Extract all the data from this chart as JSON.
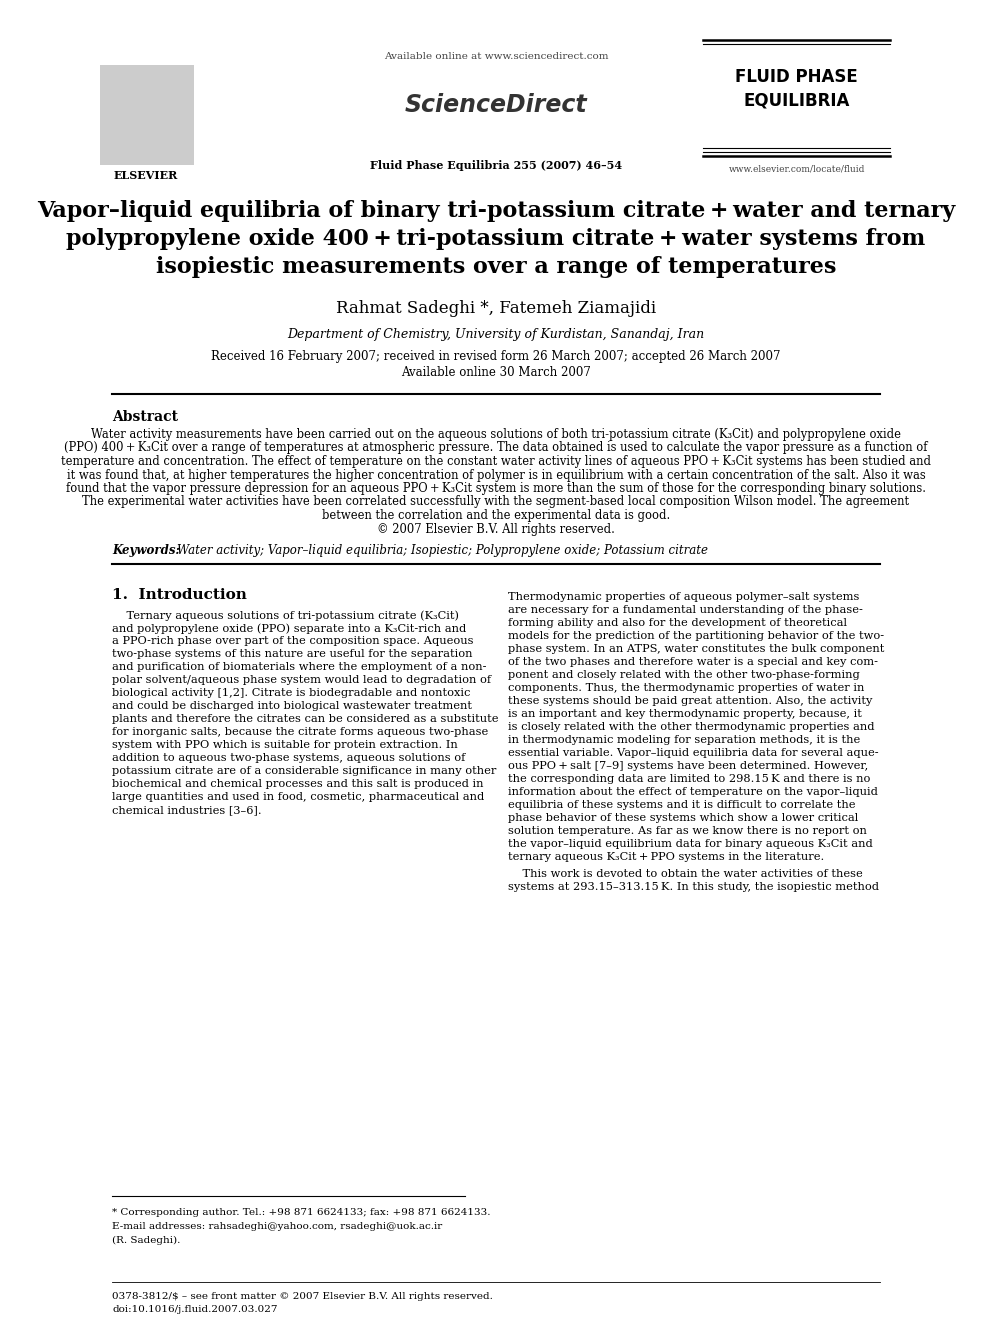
{
  "page_bg": "#ffffff",
  "header_available_online": "Available online at www.sciencedirect.com",
  "header_journal": "Fluid Phase Equilibria 255 (2007) 46–54",
  "header_url": "www.elsevier.com/locate/fluid",
  "journal_name_line1": "FLUID PHASE",
  "journal_name_line2": "EQUILIBRIA",
  "title_line1": "Vapor–liquid equilibria of binary tri-potassium citrate + water and ternary",
  "title_line2": "polypropylene oxide 400 + tri-potassium citrate + water systems from",
  "title_line3": "isopiestic measurements over a range of temperatures",
  "authors": "Rahmat Sadeghi *, Fatemeh Ziamajidi",
  "affiliation": "Department of Chemistry, University of Kurdistan, Sanandaj, Iran",
  "received": "Received 16 February 2007; received in revised form 26 March 2007; accepted 26 March 2007",
  "available_online": "Available online 30 March 2007",
  "abstract_title": "Abstract",
  "abstract_text": "Water activity measurements have been carried out on the aqueous solutions of both tri-potassium citrate (K₃Cit) and polypropylene oxide\n(PPO) 400 + K₃Cit over a range of temperatures at atmospheric pressure. The data obtained is used to calculate the vapor pressure as a function of\ntemperature and concentration. The effect of temperature on the constant water activity lines of aqueous PPO + K₃Cit systems has been studied and\nit was found that, at higher temperatures the higher concentration of polymer is in equilibrium with a certain concentration of the salt. Also it was\nfound that the vapor pressure depression for an aqueous PPO + K₃Cit system is more than the sum of those for the corresponding binary solutions.\nThe experimental water activities have been correlated successfully with the segment-based local composition Wilson model. The agreement\nbetween the correlation and the experimental data is good.\n© 2007 Elsevier B.V. All rights reserved.",
  "keywords_label": "Keywords:",
  "keywords_text": "Water activity; Vapor–liquid equilibria; Isopiestic; Polypropylene oxide; Potassium citrate",
  "section1_title": "1.  Introduction",
  "intro_col1_para1": "    Ternary aqueous solutions of tri-potassium citrate (K₃Cit)\nand polypropylene oxide (PPO) separate into a K₃Cit-rich and\na PPO-rich phase over part of the composition space. Aqueous\ntwo-phase systems of this nature are useful for the separation\nand purification of biomaterials where the employment of a non-\npolar solvent/aqueous phase system would lead to degradation of\nbiological activity [1,2]. Citrate is biodegradable and nontoxic\nand could be discharged into biological wastewater treatment\nplants and therefore the citrates can be considered as a substitute\nfor inorganic salts, because the citrate forms aqueous two-phase\nsystem with PPO which is suitable for protein extraction. In\naddition to aqueous two-phase systems, aqueous solutions of\npotassium citrate are of a considerable significance in many other\nbiochemical and chemical processes and this salt is produced in\nlarge quantities and used in food, cosmetic, pharmaceutical and\nchemical industries [3–6].",
  "intro_col2_para1": "Thermodynamic properties of aqueous polymer–salt systems\nare necessary for a fundamental understanding of the phase-\nforming ability and also for the development of theoretical\nmodels for the prediction of the partitioning behavior of the two-\nphase system. In an ATPS, water constitutes the bulk component\nof the two phases and therefore water is a special and key com-\nponent and closely related with the other two-phase-forming\ncomponents. Thus, the thermodynamic properties of water in\nthese systems should be paid great attention. Also, the activity\nis an important and key thermodynamic property, because, it\nis closely related with the other thermodynamic properties and\nin thermodynamic modeling for separation methods, it is the\nessential variable. Vapor–liquid equilibria data for several aque-\nous PPO + salt [7–9] systems have been determined. However,\nthe corresponding data are limited to 298.15 K and there is no\ninformation about the effect of temperature on the vapor–liquid\nequilibria of these systems and it is difficult to correlate the\nphase behavior of these systems which show a lower critical\nsolution temperature. As far as we know there is no report on\nthe vapor–liquid equilibrium data for binary aqueous K₃Cit and\nternary aqueous K₃Cit + PPO systems in the literature.",
  "intro_col2_para2": "    This work is devoted to obtain the water activities of these\nsystems at 293.15–313.15 K. In this study, the isopiestic method",
  "footnote_star": "* Corresponding author. Tel.: +98 871 6624133; fax: +98 871 6624133.",
  "footnote_email": "E-mail addresses: rahsadeghi@yahoo.com, rsadeghi@uok.ac.ir",
  "footnote_name": "(R. Sadeghi).",
  "footer_issn": "0378-3812/$ – see front matter © 2007 Elsevier B.V. All rights reserved.",
  "footer_doi": "doi:10.1016/j.fluid.2007.03.027"
}
